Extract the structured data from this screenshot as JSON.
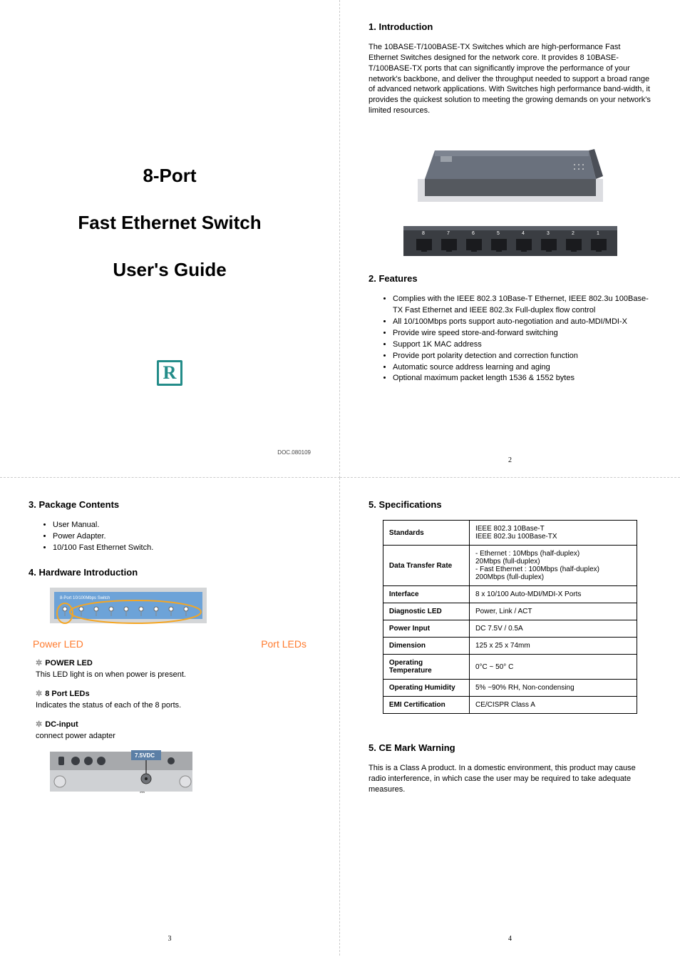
{
  "cover": {
    "line1": "8-Port",
    "line2": "Fast Ethernet Switch",
    "line3": "User's Guide",
    "doc_number": "DOC.080109",
    "logo_letter": "R",
    "logo_color": "#238c89"
  },
  "page2": {
    "sec1_title": "1. Introduction",
    "intro_text": "The 10BASE-T/100BASE-TX Switches which are high-performance Fast Ethernet Switches designed for the network core. It provides 8 10BASE-T/100BASE-TX ports that can significantly improve the performance of your network's backbone, and deliver the throughput needed to support a broad range of advanced network applications. With Switches high performance band-width, it provides the quickest solution to meeting the growing demands on your network's limited resources.",
    "port_labels": [
      "8",
      "7",
      "6",
      "5",
      "4",
      "3",
      "2",
      "1"
    ],
    "sec2_title": "2. Features",
    "features": [
      "Complies with the IEEE 802.3 10Base-T Ethernet, IEEE 802.3u 100Base-TX Fast Ethernet and IEEE 802.3x Full-duplex flow control",
      "All 10/100Mbps ports support auto-negotiation and auto-MDI/MDI-X",
      "Provide wire speed store-and-forward switching",
      "Support 1K MAC address",
      "Provide port polarity detection and correction function",
      "Automatic source address learning and aging",
      "Optional maximum packet length 1536 & 1552 bytes"
    ],
    "page_num": "2",
    "photo_colors": {
      "case": "#6a717d",
      "shadow": "#3b3f46",
      "deck": "#e8e9ec"
    }
  },
  "page3": {
    "sec3_title": "3. Package Contents",
    "contents": [
      "User Manual.",
      "Power Adapter.",
      "10/100 Fast Ethernet Switch."
    ],
    "sec4_title": "4. Hardware Introduction",
    "led_diagram": {
      "panel_label": "8-Port 10/100Mbps Switch",
      "panel_color": "#6da3d8",
      "circle_stroke": "#f5a623",
      "label_power": "Power LED",
      "label_ports": "Port LEDs",
      "label_color": "#ff7b2e"
    },
    "subs": [
      {
        "head": "POWER LED",
        "text": "This LED light is on when power is present."
      },
      {
        "head": "8 Port LEDs",
        "text": "Indicates the status of each of the 8 ports."
      },
      {
        "head": "DC-input",
        "text": "connect power adapter"
      }
    ],
    "dc_label": "7.5VDC",
    "page_num": "3"
  },
  "page4": {
    "sec5_title": "5. Specifications",
    "spec_rows": [
      {
        "k": "Standards",
        "v": "IEEE 802.3 10Base-T\nIEEE 802.3u 100Base-TX"
      },
      {
        "k": "Data Transfer Rate",
        "v": "- Ethernet : 10Mbps (half-duplex)\n                    20Mbps (full-duplex)\n- Fast Ethernet : 100Mbps (half-duplex)\n                    200Mbps (full-duplex)"
      },
      {
        "k": "Interface",
        "v": "8 x 10/100 Auto-MDI/MDI-X Ports"
      },
      {
        "k": "Diagnostic LED",
        "v": "Power, Link / ACT"
      },
      {
        "k": "Power Input",
        "v": "DC 7.5V / 0.5A"
      },
      {
        "k": "Dimension",
        "v": "125 x 25 x 74mm"
      },
      {
        "k": "Operating Temperature",
        "v": "0°C ~ 50° C"
      },
      {
        "k": "Operating Humidity",
        "v": "5% ~90% RH, Non-condensing"
      },
      {
        "k": "EMI Certification",
        "v": "CE/CISPR Class A"
      }
    ],
    "sec6_title": "5. CE Mark Warning",
    "ce_text": "This is a Class A product. In a domestic environment, this product may cause radio interference, in which case the user may be required to take adequate measures.",
    "page_num": "4"
  }
}
